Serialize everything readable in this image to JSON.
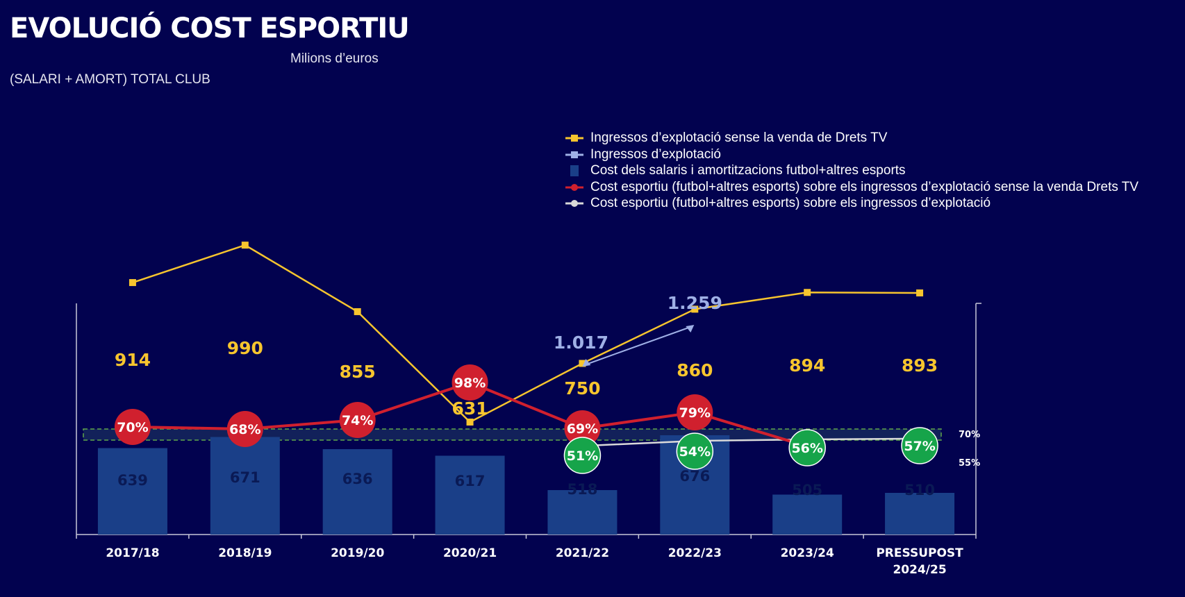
{
  "header": {
    "title": "EVOLUCIÓ COST ESPORTIU",
    "subtitle": "Milions d’euros",
    "subtitle2": "(SALARI + AMORT) TOTAL CLUB"
  },
  "legend": {
    "items": [
      {
        "label": "Ingressos d’explotació sense la venda de Drets TV",
        "color": "#f7c52e",
        "icon": "line-square-marker"
      },
      {
        "label": "Ingressos d’explotació",
        "color": "#9fb0e6",
        "icon": "line-square-marker"
      },
      {
        "label": "Cost dels salaris i amortitzacions futbol+altres esports",
        "color": "#1a3f88",
        "icon": "bar-square"
      },
      {
        "label": "Cost esportiu (futbol+altres esports) sobre els ingressos d’explotació sense la venda Drets TV",
        "color": "#d0202e",
        "icon": "line-circle-marker"
      },
      {
        "label": "Cost esportiu (futbol+altres esports) sobre els ingressos d’explotació",
        "color": "#d9d9d9",
        "icon": "line-circle-marker"
      }
    ]
  },
  "colors": {
    "background": "#02024f",
    "bar": "#1a3f88",
    "yellow": "#f7c52e",
    "light_blue": "#9fb0e6",
    "red": "#d0202e",
    "green": "#16a44a",
    "white_line": "#d9d9d9",
    "band_border": "#5fa64a"
  },
  "chart_data": {
    "type": "bar",
    "categories": [
      "2017/18",
      "2018/19",
      "2019/20",
      "2020/21",
      "2021/22",
      "2022/23",
      "2023/24",
      "PRESSUPOST 2024/25"
    ],
    "category_lines": [
      [
        "2017/18"
      ],
      [
        "2018/19"
      ],
      [
        "2019/20"
      ],
      [
        "2020/21"
      ],
      [
        "2021/22"
      ],
      [
        "2022/23"
      ],
      [
        "2023/24"
      ],
      [
        "PRESSUPOST",
        "2024/25"
      ]
    ],
    "series": [
      {
        "name": "Cost dels salaris i amortitzacions futbol+altres esports",
        "type": "bar",
        "values": [
          639,
          671,
          636,
          617,
          518,
          676,
          505,
          510
        ],
        "labels": [
          "639",
          "671",
          "636",
          "617",
          "518",
          "676",
          "505",
          "510"
        ]
      },
      {
        "name": "Ingressos d’explotació sense la venda de Drets TV",
        "type": "line",
        "values": [
          914,
          990,
          855,
          631,
          750,
          860,
          894,
          893
        ],
        "labels": [
          "914",
          "990",
          "855",
          "631",
          "750",
          "860",
          "894",
          "893"
        ]
      },
      {
        "name": "Ingressos d’explotació",
        "type": "line",
        "values": [
          null,
          null,
          null,
          null,
          1017,
          1259,
          null,
          null
        ],
        "labels": [
          "",
          "",
          "",
          "",
          "1.017",
          "1.259",
          "",
          ""
        ]
      },
      {
        "name": "Cost esportiu (futbol+altres esports) sobre els ingressos d’explotació sense la venda Drets TV",
        "type": "line",
        "values": [
          70,
          68,
          74,
          98,
          69,
          79,
          56,
          57
        ],
        "labels": [
          "70%",
          "68%",
          "74%",
          "98%",
          "69%",
          "79%",
          "56%",
          "57%"
        ]
      },
      {
        "name": "Cost esportiu (futbol+altres esports) sobre els ingressos d’explotació",
        "type": "line",
        "values": [
          null,
          null,
          null,
          null,
          51,
          54,
          56,
          57
        ],
        "labels": [
          "",
          "",
          "",
          "",
          "51%",
          "54%",
          "56%",
          "57%"
        ]
      }
    ],
    "reference_band": {
      "low": 55,
      "high": 70,
      "labels": [
        "70%",
        "55%"
      ]
    },
    "legend_position": "top-right",
    "grid": false
  }
}
